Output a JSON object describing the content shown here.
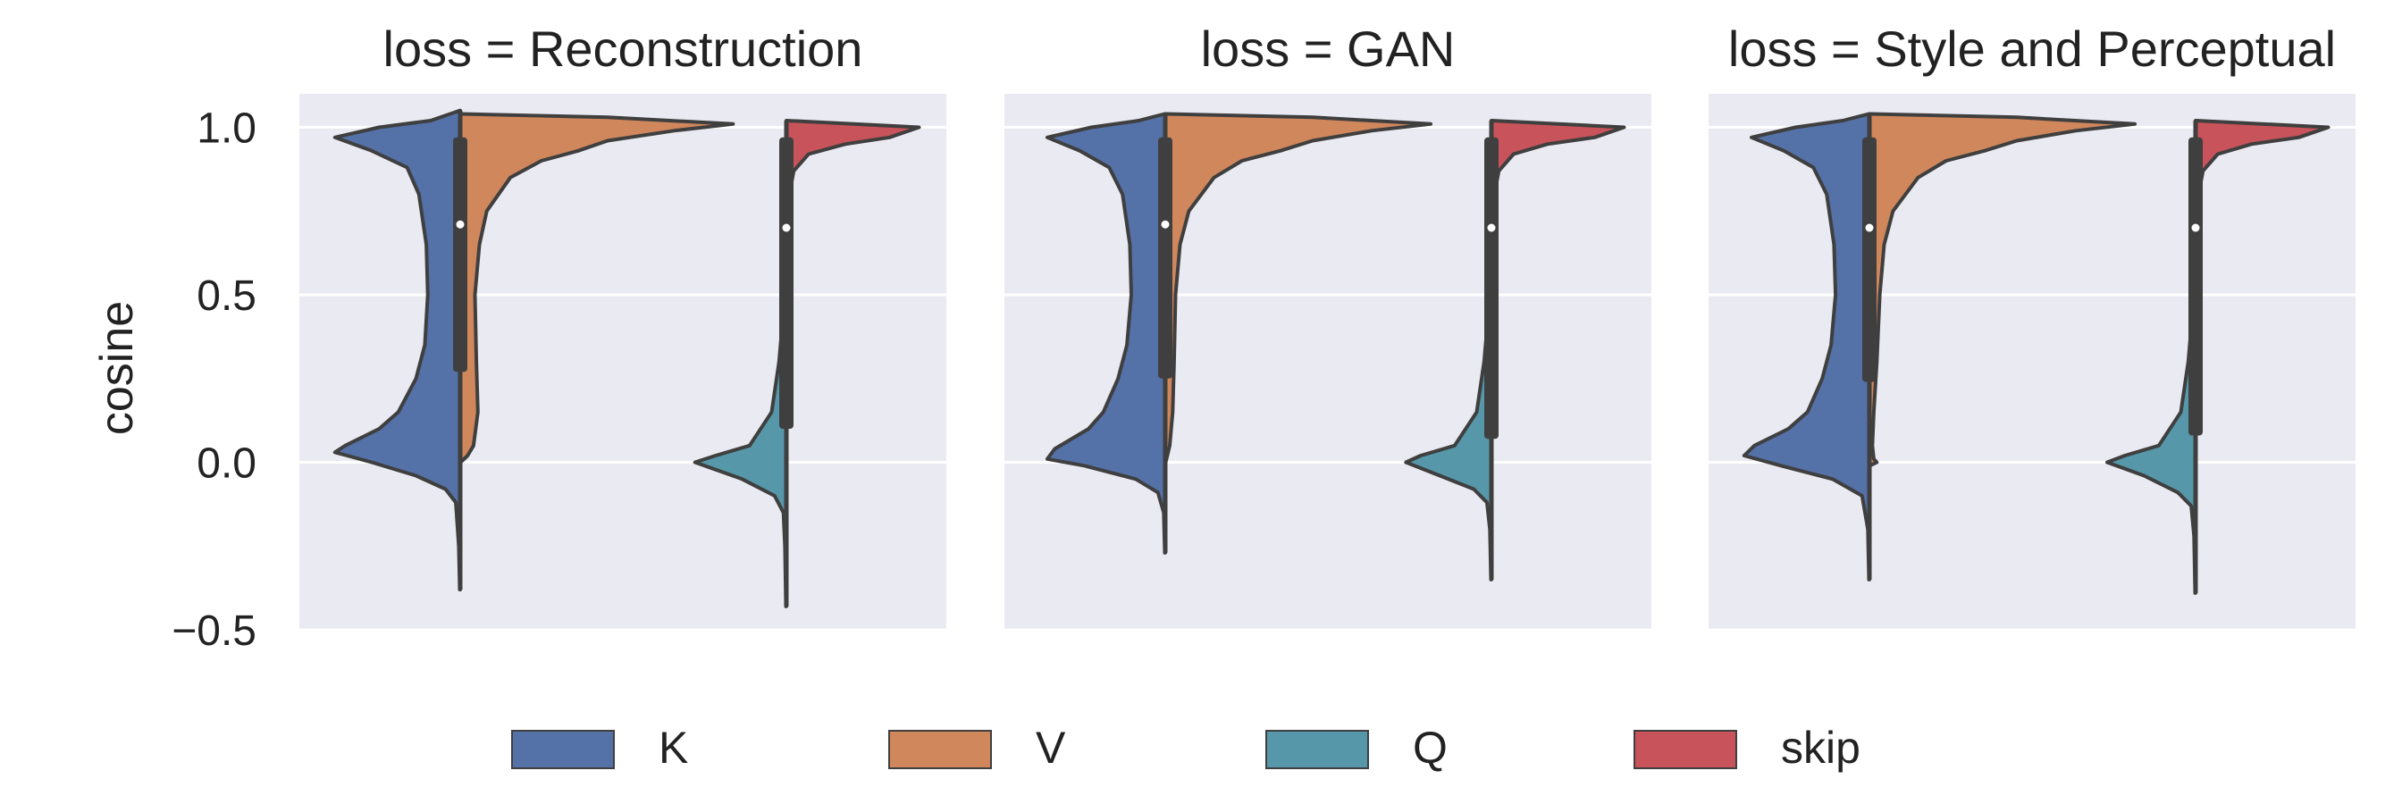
{
  "chart_data": {
    "type": "violin",
    "ylabel": "cosine",
    "ylim": [
      -0.5,
      1.1
    ],
    "yticks": [
      1.0,
      0.5,
      0.0,
      -0.5
    ],
    "ytick_labels": [
      "1.0",
      "0.5",
      "0.0",
      "−0.5"
    ],
    "grid": true,
    "legend_position": "bottom",
    "colors": {
      "K": "#5471a8",
      "V": "#d1875c",
      "Q": "#5697a9",
      "skip": "#c8535a",
      "background": "#eaeaf2",
      "grid": "#ffffff"
    },
    "legend": [
      "K",
      "V",
      "Q",
      "skip"
    ],
    "groups": [
      {
        "left": "K",
        "right": "V"
      },
      {
        "left": "Q",
        "right": "skip"
      }
    ],
    "facets": [
      {
        "title": "loss = Reconstruction",
        "violins": [
          {
            "series": "K",
            "side": "left",
            "ymin": -0.38,
            "ymax": 1.05,
            "profile": [
              [
                -0.38,
                0.003
              ],
              [
                -0.25,
                0.01
              ],
              [
                -0.12,
                0.03
              ],
              [
                -0.08,
                0.1
              ],
              [
                -0.04,
                0.3
              ],
              [
                0.0,
                0.6
              ],
              [
                0.03,
                0.85
              ],
              [
                0.05,
                0.78
              ],
              [
                0.1,
                0.55
              ],
              [
                0.15,
                0.42
              ],
              [
                0.25,
                0.3
              ],
              [
                0.35,
                0.24
              ],
              [
                0.5,
                0.22
              ],
              [
                0.65,
                0.23
              ],
              [
                0.8,
                0.28
              ],
              [
                0.88,
                0.36
              ],
              [
                0.93,
                0.6
              ],
              [
                0.97,
                0.85
              ],
              [
                1.0,
                0.55
              ],
              [
                1.02,
                0.2
              ],
              [
                1.05,
                0.003
              ]
            ]
          },
          {
            "series": "V",
            "side": "right",
            "ymin": 0.0,
            "ymax": 1.04,
            "profile": [
              [
                0.0,
                0.003
              ],
              [
                0.02,
                0.05
              ],
              [
                0.05,
                0.09
              ],
              [
                0.15,
                0.12
              ],
              [
                0.3,
                0.11
              ],
              [
                0.5,
                0.1
              ],
              [
                0.65,
                0.13
              ],
              [
                0.75,
                0.18
              ],
              [
                0.85,
                0.34
              ],
              [
                0.9,
                0.55
              ],
              [
                0.93,
                0.8
              ],
              [
                0.96,
                1.0
              ],
              [
                0.99,
                1.45
              ],
              [
                1.01,
                1.85
              ],
              [
                1.03,
                1.0
              ],
              [
                1.04,
                0.003
              ]
            ]
          },
          {
            "series": "Q",
            "side": "left",
            "ymin": -0.43,
            "ymax": 0.55,
            "profile": [
              [
                -0.43,
                0.003
              ],
              [
                -0.25,
                0.01
              ],
              [
                -0.15,
                0.02
              ],
              [
                -0.1,
                0.08
              ],
              [
                -0.05,
                0.3
              ],
              [
                0.0,
                0.62
              ],
              [
                0.02,
                0.48
              ],
              [
                0.05,
                0.25
              ],
              [
                0.15,
                0.1
              ],
              [
                0.3,
                0.05
              ],
              [
                0.45,
                0.02
              ],
              [
                0.55,
                0.003
              ]
            ]
          },
          {
            "series": "skip",
            "side": "right",
            "ymin": 0.55,
            "ymax": 1.02,
            "profile": [
              [
                0.55,
                0.003
              ],
              [
                0.7,
                0.01
              ],
              [
                0.8,
                0.02
              ],
              [
                0.87,
                0.05
              ],
              [
                0.92,
                0.15
              ],
              [
                0.95,
                0.4
              ],
              [
                0.97,
                0.7
              ],
              [
                1.0,
                0.9
              ],
              [
                1.02,
                0.003
              ]
            ]
          }
        ],
        "boxes": [
          {
            "group": 0,
            "q1": 0.27,
            "q3": 0.97,
            "median": 0.71,
            "whisker_low": -0.38,
            "whisker_high": 1.05
          },
          {
            "group": 1,
            "q1": 0.1,
            "q3": 0.97,
            "median": 0.7,
            "whisker_low": -0.43,
            "whisker_high": 1.02
          }
        ]
      },
      {
        "title": "loss = GAN",
        "violins": [
          {
            "series": "K",
            "side": "left",
            "ymin": -0.27,
            "ymax": 1.04,
            "profile": [
              [
                -0.27,
                0.003
              ],
              [
                -0.15,
                0.01
              ],
              [
                -0.09,
                0.05
              ],
              [
                -0.05,
                0.2
              ],
              [
                -0.01,
                0.55
              ],
              [
                0.01,
                0.8
              ],
              [
                0.04,
                0.75
              ],
              [
                0.1,
                0.52
              ],
              [
                0.15,
                0.42
              ],
              [
                0.25,
                0.32
              ],
              [
                0.35,
                0.26
              ],
              [
                0.5,
                0.23
              ],
              [
                0.65,
                0.24
              ],
              [
                0.8,
                0.29
              ],
              [
                0.88,
                0.38
              ],
              [
                0.93,
                0.58
              ],
              [
                0.97,
                0.8
              ],
              [
                1.0,
                0.5
              ],
              [
                1.02,
                0.18
              ],
              [
                1.04,
                0.003
              ]
            ]
          },
          {
            "series": "V",
            "side": "right",
            "ymin": 0.0,
            "ymax": 1.04,
            "profile": [
              [
                0.0,
                0.003
              ],
              [
                0.05,
                0.03
              ],
              [
                0.15,
                0.05
              ],
              [
                0.3,
                0.06
              ],
              [
                0.5,
                0.07
              ],
              [
                0.65,
                0.1
              ],
              [
                0.75,
                0.16
              ],
              [
                0.85,
                0.33
              ],
              [
                0.9,
                0.52
              ],
              [
                0.93,
                0.78
              ],
              [
                0.96,
                1.0
              ],
              [
                0.99,
                1.4
              ],
              [
                1.01,
                1.8
              ],
              [
                1.03,
                1.0
              ],
              [
                1.04,
                0.003
              ]
            ]
          },
          {
            "series": "Q",
            "side": "left",
            "ymin": -0.35,
            "ymax": 0.55,
            "profile": [
              [
                -0.35,
                0.003
              ],
              [
                -0.2,
                0.01
              ],
              [
                -0.12,
                0.03
              ],
              [
                -0.08,
                0.12
              ],
              [
                -0.04,
                0.35
              ],
              [
                0.0,
                0.58
              ],
              [
                0.02,
                0.48
              ],
              [
                0.05,
                0.25
              ],
              [
                0.15,
                0.1
              ],
              [
                0.3,
                0.05
              ],
              [
                0.45,
                0.02
              ],
              [
                0.55,
                0.003
              ]
            ]
          },
          {
            "series": "skip",
            "side": "right",
            "ymin": 0.55,
            "ymax": 1.02,
            "profile": [
              [
                0.55,
                0.003
              ],
              [
                0.7,
                0.01
              ],
              [
                0.8,
                0.02
              ],
              [
                0.87,
                0.05
              ],
              [
                0.92,
                0.15
              ],
              [
                0.95,
                0.38
              ],
              [
                0.97,
                0.7
              ],
              [
                1.0,
                0.9
              ],
              [
                1.02,
                0.003
              ]
            ]
          }
        ],
        "boxes": [
          {
            "group": 0,
            "q1": 0.25,
            "q3": 0.97,
            "median": 0.71,
            "whisker_low": -0.27,
            "whisker_high": 1.04
          },
          {
            "group": 1,
            "q1": 0.07,
            "q3": 0.97,
            "median": 0.7,
            "whisker_low": -0.35,
            "whisker_high": 1.02
          }
        ]
      },
      {
        "title": "loss = Style and Perceptual",
        "violins": [
          {
            "series": "K",
            "side": "left",
            "ymin": -0.35,
            "ymax": 1.04,
            "profile": [
              [
                -0.35,
                0.003
              ],
              [
                -0.2,
                0.01
              ],
              [
                -0.1,
                0.05
              ],
              [
                -0.05,
                0.25
              ],
              [
                -0.01,
                0.6
              ],
              [
                0.02,
                0.85
              ],
              [
                0.05,
                0.78
              ],
              [
                0.1,
                0.55
              ],
              [
                0.15,
                0.42
              ],
              [
                0.25,
                0.32
              ],
              [
                0.35,
                0.26
              ],
              [
                0.5,
                0.23
              ],
              [
                0.65,
                0.24
              ],
              [
                0.8,
                0.29
              ],
              [
                0.88,
                0.38
              ],
              [
                0.93,
                0.58
              ],
              [
                0.97,
                0.8
              ],
              [
                1.0,
                0.5
              ],
              [
                1.02,
                0.18
              ],
              [
                1.04,
                0.003
              ]
            ]
          },
          {
            "series": "V",
            "side": "right",
            "ymin": -0.01,
            "ymax": 1.04,
            "profile": [
              [
                -0.01,
                0.003
              ],
              [
                0.0,
                0.05
              ],
              [
                0.01,
                0.03
              ],
              [
                0.05,
                0.02
              ],
              [
                0.15,
                0.03
              ],
              [
                0.3,
                0.05
              ],
              [
                0.5,
                0.07
              ],
              [
                0.65,
                0.1
              ],
              [
                0.75,
                0.16
              ],
              [
                0.85,
                0.33
              ],
              [
                0.9,
                0.52
              ],
              [
                0.93,
                0.78
              ],
              [
                0.96,
                1.0
              ],
              [
                0.99,
                1.4
              ],
              [
                1.01,
                1.8
              ],
              [
                1.03,
                1.0
              ],
              [
                1.04,
                0.003
              ]
            ]
          },
          {
            "series": "Q",
            "side": "left",
            "ymin": -0.39,
            "ymax": 0.55,
            "profile": [
              [
                -0.39,
                0.003
              ],
              [
                -0.22,
                0.01
              ],
              [
                -0.13,
                0.03
              ],
              [
                -0.09,
                0.12
              ],
              [
                -0.04,
                0.35
              ],
              [
                0.0,
                0.6
              ],
              [
                0.02,
                0.48
              ],
              [
                0.05,
                0.25
              ],
              [
                0.15,
                0.1
              ],
              [
                0.3,
                0.05
              ],
              [
                0.45,
                0.02
              ],
              [
                0.55,
                0.003
              ]
            ]
          },
          {
            "series": "skip",
            "side": "right",
            "ymin": 0.55,
            "ymax": 1.02,
            "profile": [
              [
                0.55,
                0.003
              ],
              [
                0.7,
                0.01
              ],
              [
                0.8,
                0.02
              ],
              [
                0.87,
                0.05
              ],
              [
                0.92,
                0.15
              ],
              [
                0.95,
                0.38
              ],
              [
                0.97,
                0.7
              ],
              [
                1.0,
                0.9
              ],
              [
                1.02,
                0.003
              ]
            ]
          }
        ],
        "boxes": [
          {
            "group": 0,
            "q1": 0.24,
            "q3": 0.97,
            "median": 0.7,
            "whisker_low": -0.35,
            "whisker_high": 1.04
          },
          {
            "group": 1,
            "q1": 0.08,
            "q3": 0.97,
            "median": 0.7,
            "whisker_low": -0.39,
            "whisker_high": 1.02
          }
        ]
      }
    ]
  }
}
